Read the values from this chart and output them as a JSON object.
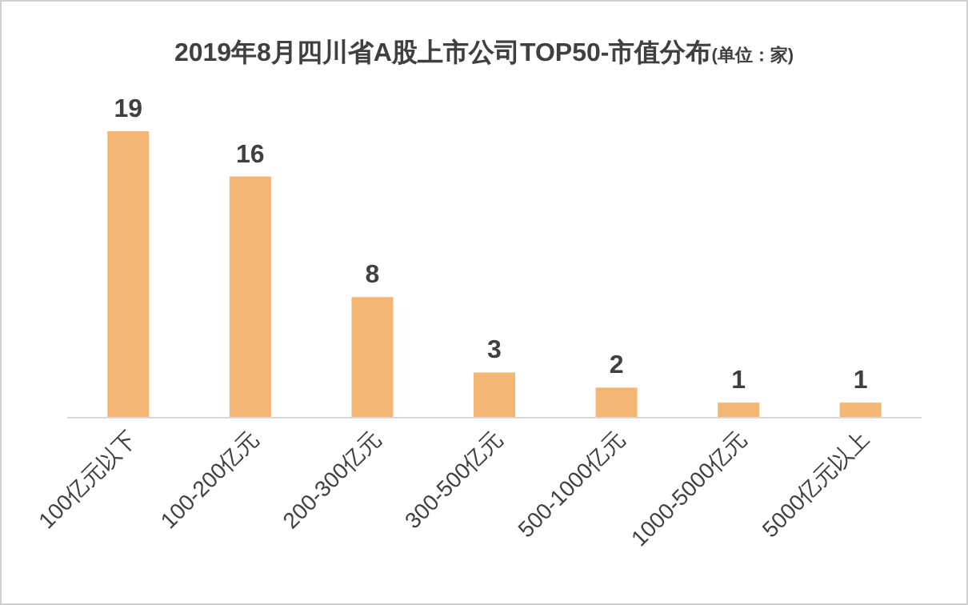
{
  "chart_data": {
    "type": "bar",
    "title": "2019年8月四川省A股上市公司TOP50-市值分布",
    "subtitle": "(单位：家)",
    "categories": [
      "100亿元以下",
      "100-200亿元",
      "200-300亿元",
      "300-500亿元",
      "500-1000亿元",
      "1000-5000亿元",
      "5000亿元以上"
    ],
    "values": [
      19,
      16,
      8,
      3,
      2,
      1,
      1
    ],
    "color": "#f4b674",
    "data_labels": true
  }
}
